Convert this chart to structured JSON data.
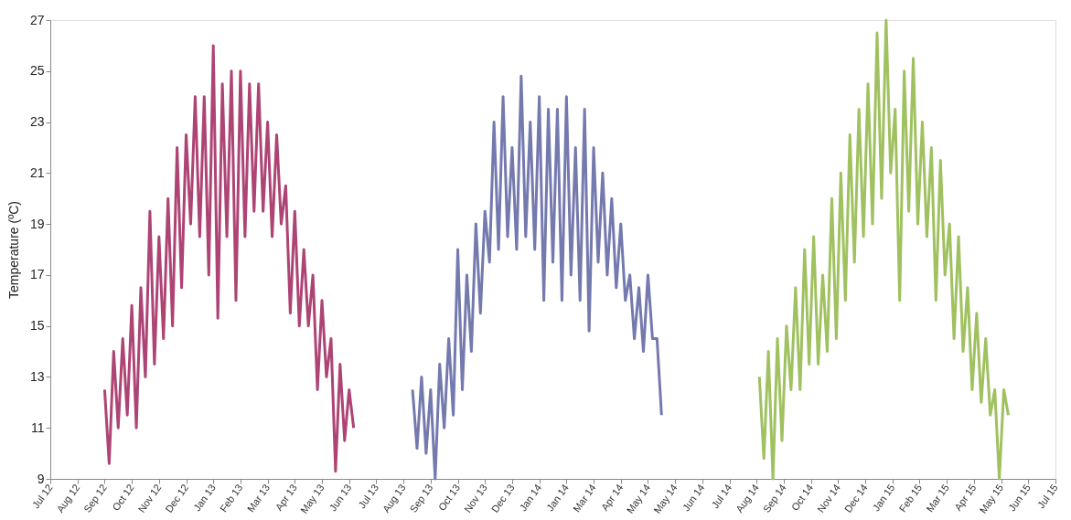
{
  "chart_data": {
    "type": "line",
    "ylabel": "Temperature (ºC)",
    "ylim": [
      9,
      27
    ],
    "yticks": [
      9,
      11,
      13,
      15,
      17,
      19,
      21,
      23,
      25,
      27
    ],
    "xlim": [
      "2012-07-10",
      "2015-07-25"
    ],
    "xticks": [
      {
        "value": "2012-07-10",
        "label": "Jul 12"
      },
      {
        "value": "2012-08-09",
        "label": "Aug 12"
      },
      {
        "value": "2012-09-08",
        "label": "Sep 12"
      },
      {
        "value": "2012-10-08",
        "label": "Oct 12"
      },
      {
        "value": "2012-11-07",
        "label": "Nov 12"
      },
      {
        "value": "2012-12-07",
        "label": "Dec 12"
      },
      {
        "value": "2013-01-06",
        "label": "Jan 13"
      },
      {
        "value": "2013-02-05",
        "label": "Feb 13"
      },
      {
        "value": "2013-03-07",
        "label": "Mar 13"
      },
      {
        "value": "2013-04-06",
        "label": "Apr 13"
      },
      {
        "value": "2013-05-06",
        "label": "May 13"
      },
      {
        "value": "2013-06-05",
        "label": "Jun 13"
      },
      {
        "value": "2013-07-05",
        "label": "Jul 13"
      },
      {
        "value": "2013-08-04",
        "label": "Aug 13"
      },
      {
        "value": "2013-09-03",
        "label": "Sep 13"
      },
      {
        "value": "2013-10-03",
        "label": "Oct 13"
      },
      {
        "value": "2013-11-02",
        "label": "Nov 13"
      },
      {
        "value": "2013-12-02",
        "label": "Dec 13"
      },
      {
        "value": "2014-01-01",
        "label": "Jan 14"
      },
      {
        "value": "2014-01-31",
        "label": "Jan 14"
      },
      {
        "value": "2014-03-02",
        "label": "Mar 14"
      },
      {
        "value": "2014-04-01",
        "label": "Apr 14"
      },
      {
        "value": "2014-05-01",
        "label": "May 14"
      },
      {
        "value": "2014-05-31",
        "label": "May 14"
      },
      {
        "value": "2014-06-30",
        "label": "Jun 14"
      },
      {
        "value": "2014-07-30",
        "label": "Jul 14"
      },
      {
        "value": "2014-08-29",
        "label": "Aug 14"
      },
      {
        "value": "2014-09-28",
        "label": "Sep 14"
      },
      {
        "value": "2014-10-28",
        "label": "Oct 14"
      },
      {
        "value": "2014-11-27",
        "label": "Nov 14"
      },
      {
        "value": "2014-12-27",
        "label": "Dec 14"
      },
      {
        "value": "2015-01-26",
        "label": "Jan 15"
      },
      {
        "value": "2015-02-25",
        "label": "Feb 15"
      },
      {
        "value": "2015-03-27",
        "label": "Mar 15"
      },
      {
        "value": "2015-04-26",
        "label": "Apr 15"
      },
      {
        "value": "2015-05-26",
        "label": "May 15"
      },
      {
        "value": "2015-06-25",
        "label": "Jun 15"
      },
      {
        "value": "2015-07-25",
        "label": "Jul 15"
      }
    ],
    "grid": false,
    "legend": false,
    "marker": "none",
    "line_style": "solid",
    "series": [
      {
        "color": "#ad4474",
        "x": [
          "2012-09-08",
          "2012-09-13",
          "2012-09-18",
          "2012-09-23",
          "2012-09-28",
          "2012-10-03",
          "2012-10-08",
          "2012-10-13",
          "2012-10-18",
          "2012-10-23",
          "2012-10-28",
          "2012-11-02",
          "2012-11-07",
          "2012-11-12",
          "2012-11-17",
          "2012-11-22",
          "2012-11-27",
          "2012-12-02",
          "2012-12-07",
          "2012-12-12",
          "2012-12-17",
          "2012-12-22",
          "2012-12-27",
          "2013-01-01",
          "2013-01-06",
          "2013-01-11",
          "2013-01-16",
          "2013-01-21",
          "2013-01-26",
          "2013-01-31",
          "2013-02-05",
          "2013-02-10",
          "2013-02-15",
          "2013-02-20",
          "2013-02-25",
          "2013-03-02",
          "2013-03-07",
          "2013-03-12",
          "2013-03-17",
          "2013-03-22",
          "2013-03-27",
          "2013-04-01",
          "2013-04-06",
          "2013-04-11",
          "2013-04-16",
          "2013-04-21",
          "2013-04-26",
          "2013-05-01",
          "2013-05-06",
          "2013-05-11",
          "2013-05-16",
          "2013-05-21",
          "2013-05-26",
          "2013-05-31",
          "2013-06-05",
          "2013-06-10"
        ],
        "values": [
          12.5,
          9.6,
          14,
          11,
          14.5,
          11.5,
          15.8,
          11,
          16.5,
          13,
          19.5,
          13.5,
          18.5,
          14.5,
          20,
          15,
          22,
          16.5,
          22.5,
          19,
          24,
          18.5,
          24,
          17,
          26,
          15.3,
          24.5,
          18.5,
          25,
          16,
          25,
          18.5,
          24.5,
          19.5,
          24.5,
          19.5,
          23,
          18.5,
          22.5,
          19,
          20.5,
          15.5,
          19.5,
          15,
          18,
          15,
          17,
          12.5,
          16,
          13,
          14.5,
          9.3,
          13.5,
          10.5,
          12.5,
          11
        ]
      },
      {
        "color": "#7479ae",
        "x": [
          "2013-08-14",
          "2013-08-19",
          "2013-08-24",
          "2013-08-29",
          "2013-09-03",
          "2013-09-08",
          "2013-09-13",
          "2013-09-18",
          "2013-09-23",
          "2013-09-28",
          "2013-10-03",
          "2013-10-08",
          "2013-10-13",
          "2013-10-18",
          "2013-10-23",
          "2013-10-28",
          "2013-11-02",
          "2013-11-07",
          "2013-11-12",
          "2013-11-17",
          "2013-11-22",
          "2013-11-27",
          "2013-12-02",
          "2013-12-07",
          "2013-12-12",
          "2013-12-17",
          "2013-12-22",
          "2013-12-27",
          "2014-01-01",
          "2014-01-06",
          "2014-01-11",
          "2014-01-16",
          "2014-01-21",
          "2014-01-26",
          "2014-01-31",
          "2014-02-05",
          "2014-02-10",
          "2014-02-15",
          "2014-02-20",
          "2014-02-25",
          "2014-03-02",
          "2014-03-07",
          "2014-03-12",
          "2014-03-17",
          "2014-03-22",
          "2014-03-27",
          "2014-04-01",
          "2014-04-06",
          "2014-04-11",
          "2014-04-16",
          "2014-04-21",
          "2014-04-26",
          "2014-05-01",
          "2014-05-06",
          "2014-05-11",
          "2014-05-16"
        ],
        "values": [
          12.5,
          10.2,
          13,
          10,
          12.5,
          9,
          13.5,
          11,
          14.5,
          11.5,
          18,
          12.5,
          17,
          14,
          19,
          15.5,
          19.5,
          17.5,
          23,
          18,
          24,
          18.5,
          22,
          18,
          24.8,
          18.5,
          23,
          18,
          24,
          16,
          23.5,
          17.5,
          23.5,
          16,
          24,
          17,
          22,
          16,
          23.5,
          14.8,
          22,
          17.5,
          21,
          17,
          20,
          16.5,
          19,
          16,
          17,
          14.5,
          16.5,
          14,
          17,
          14.5,
          14.5,
          11.5
        ]
      },
      {
        "color": "#9fc15f",
        "x": [
          "2014-09-01",
          "2014-09-06",
          "2014-09-11",
          "2014-09-16",
          "2014-09-21",
          "2014-09-26",
          "2014-10-01",
          "2014-10-06",
          "2014-10-11",
          "2014-10-16",
          "2014-10-21",
          "2014-10-26",
          "2014-10-31",
          "2014-11-05",
          "2014-11-10",
          "2014-11-15",
          "2014-11-20",
          "2014-11-25",
          "2014-11-30",
          "2014-12-05",
          "2014-12-10",
          "2014-12-15",
          "2014-12-20",
          "2014-12-25",
          "2014-12-30",
          "2015-01-04",
          "2015-01-09",
          "2015-01-14",
          "2015-01-19",
          "2015-01-24",
          "2015-01-29",
          "2015-02-03",
          "2015-02-08",
          "2015-02-13",
          "2015-02-18",
          "2015-02-23",
          "2015-02-28",
          "2015-03-05",
          "2015-03-10",
          "2015-03-15",
          "2015-03-20",
          "2015-03-25",
          "2015-03-30",
          "2015-04-04",
          "2015-04-09",
          "2015-04-14",
          "2015-04-19",
          "2015-04-24",
          "2015-04-29",
          "2015-05-04",
          "2015-05-09",
          "2015-05-14",
          "2015-05-19",
          "2015-05-24",
          "2015-05-29",
          "2015-06-03"
        ],
        "values": [
          13,
          9.8,
          14,
          9,
          14.5,
          10.5,
          15,
          12.5,
          16.5,
          12.5,
          18,
          13.5,
          18.5,
          13.5,
          17,
          14,
          20,
          14.5,
          21,
          16,
          22.5,
          17.5,
          23.5,
          18.5,
          24.5,
          19,
          26.5,
          20,
          27,
          21,
          23.5,
          16,
          25,
          19.5,
          25.5,
          19,
          23,
          18.5,
          22,
          16,
          21.5,
          17,
          19,
          14.5,
          18.5,
          14,
          16.5,
          12.5,
          15.5,
          12,
          14.5,
          11.5,
          12.5,
          9,
          12.5,
          11.5
        ]
      }
    ]
  }
}
